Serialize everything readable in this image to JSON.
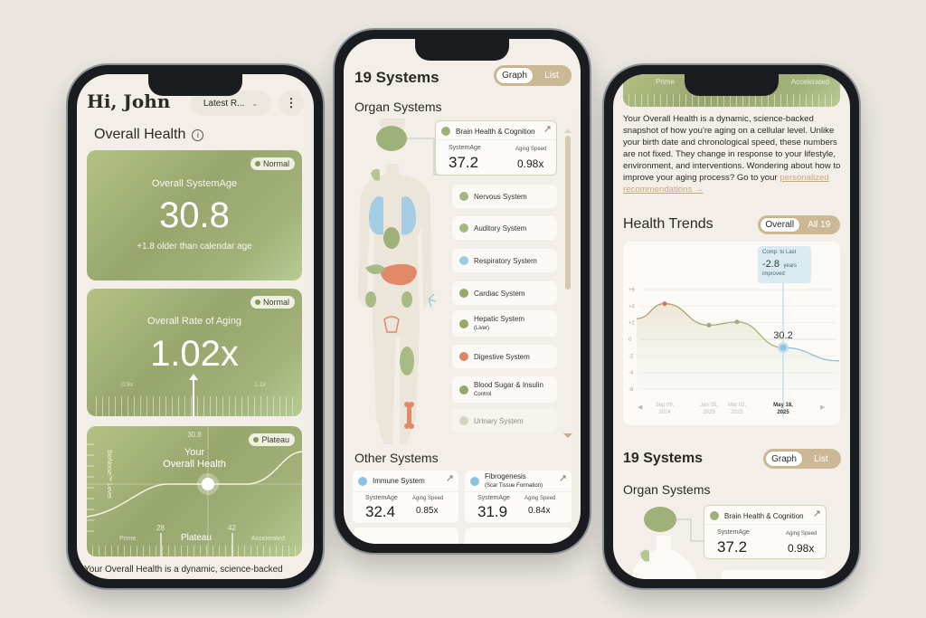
{
  "colors": {
    "background": "#ebe7e0",
    "screen": "#f3efe8",
    "accent_green": "#97a66d",
    "accent_tan": "#c8ae86",
    "highlight_blue": "#8cc3e0",
    "peak_red": "#d9735a"
  },
  "phone1": {
    "greeting": "Hi, John",
    "report_select": "Latest R...",
    "more_icon": "kebab-icon",
    "section_title": "Overall Health",
    "info_icon": "info-icon",
    "system_age_card": {
      "badge": "Normal",
      "label": "Overall SystemAge",
      "value": "30.8",
      "note": "+1.8 older than calendar age"
    },
    "rate_card": {
      "badge": "Normal",
      "label": "Overall Rate of Aging",
      "value": "1.02x",
      "scale_min": "0.9x",
      "scale_max": "1.1x",
      "pointer_fraction": 0.6
    },
    "plateau_card": {
      "badge": "Plateau",
      "top_value": "30.8",
      "title_line1": "Your",
      "title_line2": "Overall Health",
      "axis_label": "BioNoise™ Level",
      "zone_left": "Prime",
      "zone_mid": "Plateau",
      "zone_right": "Accelerated",
      "bound_low": "28",
      "bound_high": "42"
    },
    "footer_text": "Your Overall Health is a dynamic, science-backed"
  },
  "phone2": {
    "title": "19 Systems",
    "toggle": {
      "graph": "Graph",
      "list": "List",
      "active": "Graph"
    },
    "organ_title": "Organ Systems",
    "featured": {
      "name": "Brain Health & Cognition",
      "age_label": "SystemAge",
      "age": "37.2",
      "speed_label": "Aging Speed",
      "speed": "0.98x"
    },
    "systems": [
      {
        "name": "Nervous System",
        "sub": "",
        "color": "#a7b67c"
      },
      {
        "name": "Auditory System",
        "sub": "",
        "color": "#a7b67c"
      },
      {
        "name": "Respiratory System",
        "sub": "",
        "color": "#9ccbe3"
      },
      {
        "name": "Cardiac System",
        "sub": "",
        "color": "#94a96a"
      },
      {
        "name": "Hepatic System",
        "sub": "(Liver)",
        "color": "#94a96a"
      },
      {
        "name": "Digestive System",
        "sub": "",
        "color": "#e08564"
      },
      {
        "name": "Blood Sugar & Insulin",
        "sub": "Control",
        "color": "#94a96a"
      },
      {
        "name": "Urinary System",
        "sub": "",
        "color": "#b7c59a"
      }
    ],
    "other_title": "Other Systems",
    "other": [
      {
        "name": "Immune System",
        "sub": "",
        "age_label": "SystemAge",
        "age": "32.4",
        "speed_label": "Aging Speed",
        "speed": "0.85x",
        "color": "#8cc3e0"
      },
      {
        "name": "Fibrogenesis",
        "sub": "(Scar Tissue Formation)",
        "age_label": "SystemAge",
        "age": "31.9",
        "speed_label": "Aging Speed",
        "speed": "0.84x",
        "color": "#8cc3e0"
      }
    ]
  },
  "phone3": {
    "zone_left": "Prime",
    "zone_right": "Accelerated",
    "paragraph": "Your Overall Health is a dynamic, science-backed snapshot of how you're aging on a cellular level. Unlike your birth date and chronological speed, these numbers are not fixed. They change in response to your lifestyle, environment, and interventions. Wondering about how to improve your aging process? Go to your ",
    "link": "personalized recommendations →",
    "trends_title": "Health Trends",
    "trends_toggle": {
      "overall": "Overall",
      "all": "All 19",
      "active": "Overall"
    },
    "tooltip": {
      "title": "Comp. to Last",
      "value": "-2.8",
      "unit": "years",
      "note": "improved"
    },
    "systems_title": "19 Systems",
    "toggle": {
      "graph": "Graph",
      "list": "List",
      "active": "Graph"
    },
    "organ_title": "Organ Systems",
    "featured": {
      "name": "Brain Health & Cognition",
      "age_label": "SystemAge",
      "age": "37.2",
      "speed_label": "Aging Speed",
      "speed": "0.98x"
    }
  },
  "chart_data": {
    "type": "line",
    "ylim": [
      -6,
      6
    ],
    "yticks": [
      "+6",
      "+4",
      "+2",
      "0",
      "-2",
      "-4",
      "-6"
    ],
    "grid": true,
    "x": [
      {
        "line1": "Sep 09,",
        "line2": "2024"
      },
      {
        "line1": "Jan 05,",
        "line2": "2025"
      },
      {
        "line1": "Mar 02,",
        "line2": "2025"
      },
      {
        "line1": "May 18,",
        "line2": "2025"
      }
    ],
    "values": [
      4.3,
      1.7,
      2.1,
      -1.0
    ],
    "leading_value": 2.5,
    "trailing_value": -2.6,
    "selected_index": 3,
    "selected_label": "30.2"
  }
}
